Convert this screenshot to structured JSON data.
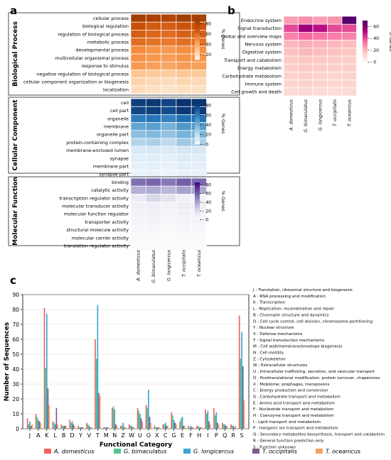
{
  "panel_labels": {
    "a": "a",
    "b": "b",
    "c": "c"
  },
  "species": [
    "A. domesticus",
    "G. bimaculatus",
    "G. longicercus",
    "T. occipitalis",
    "T. oceanicus"
  ],
  "chart_data": [
    {
      "type": "heatmap",
      "panel": "a",
      "group_label": "Biological Process",
      "colorbar_label": "% Genes",
      "colorbar_ticks": [
        20,
        40,
        60,
        80
      ],
      "range": [
        10,
        90
      ],
      "colormap": [
        "#fef3e6",
        "#fcc693",
        "#f58b3d",
        "#c94f06",
        "#963a05"
      ],
      "rows": [
        "cellular process",
        "biological regulation",
        "regulation of biological process",
        "metabolic process",
        "developmental process",
        "multicellular organismal process",
        "response to stimulus",
        "negative regulation of biological process",
        "cellular component organization or biogenesis",
        "localization"
      ],
      "columns": [
        "A. domesticus",
        "G. bimaculatus",
        "G. longicercus",
        "T. occipitalis",
        "T. oceanicus"
      ],
      "values": [
        [
          85,
          82,
          80,
          85,
          83
        ],
        [
          70,
          66,
          65,
          69,
          68
        ],
        [
          65,
          62,
          60,
          64,
          63
        ],
        [
          60,
          58,
          56,
          59,
          58
        ],
        [
          50,
          47,
          45,
          49,
          48
        ],
        [
          48,
          46,
          44,
          47,
          46
        ],
        [
          45,
          43,
          41,
          44,
          43
        ],
        [
          30,
          28,
          27,
          29,
          28
        ],
        [
          24,
          22,
          21,
          23,
          22
        ],
        [
          20,
          18,
          17,
          19,
          18
        ]
      ]
    },
    {
      "type": "heatmap",
      "panel": "a",
      "group_label": "Cellular Component",
      "colorbar_label": "% Genes",
      "colorbar_ticks": [
        0,
        20,
        40,
        60,
        80
      ],
      "range": [
        0,
        85
      ],
      "colormap": [
        "#f4f9fe",
        "#c5dcef",
        "#6baed6",
        "#2171b5",
        "#08306b"
      ],
      "rows": [
        "cell",
        "cell part",
        "organelle",
        "membrane",
        "organelle part",
        "protein-containing complex",
        "membrane-enclosed lumen",
        "synapse",
        "membrane part",
        "synapse part"
      ],
      "columns": [
        "A. domesticus",
        "G. bimaculatus",
        "G. longicercus",
        "T. occipitalis",
        "T. oceanicus"
      ],
      "values": [
        [
          80,
          82,
          78,
          84,
          83
        ],
        [
          78,
          80,
          76,
          82,
          81
        ],
        [
          60,
          62,
          58,
          64,
          63
        ],
        [
          45,
          47,
          40,
          50,
          48
        ],
        [
          35,
          37,
          33,
          40,
          38
        ],
        [
          25,
          27,
          22,
          30,
          28
        ],
        [
          12,
          13,
          11,
          14,
          13
        ],
        [
          8,
          9,
          7,
          10,
          9
        ],
        [
          6,
          7,
          5,
          8,
          7
        ],
        [
          4,
          5,
          3,
          6,
          5
        ]
      ]
    },
    {
      "type": "heatmap",
      "panel": "a",
      "group_label": "Molecular Function",
      "colorbar_label": "% Genes",
      "colorbar_ticks": [
        0,
        20,
        40,
        60,
        80
      ],
      "range": [
        0,
        85
      ],
      "colormap": [
        "#fcfbfd",
        "#dadaeb",
        "#9e9ac8",
        "#6a51a3",
        "#3f007d"
      ],
      "rows": [
        "binding",
        "catalytic activity",
        "transcription regulator activity",
        "molecular transducer activity",
        "molecular function regulator",
        "transporter activity",
        "structural molecule activity",
        "molecular carrier activity",
        "translation regulator activity"
      ],
      "columns": [
        "A. domesticus",
        "G. bimaculatus",
        "G. longicercus",
        "T. occipitalis",
        "T. oceanicus"
      ],
      "values": [
        [
          55,
          58,
          52,
          60,
          57
        ],
        [
          35,
          37,
          33,
          40,
          38
        ],
        [
          10,
          22,
          15,
          8,
          6
        ],
        [
          7,
          8,
          6,
          9,
          8
        ],
        [
          6,
          7,
          5,
          7,
          6
        ],
        [
          5,
          6,
          4,
          6,
          5
        ],
        [
          3,
          4,
          2,
          4,
          3
        ],
        [
          1,
          1,
          1,
          1,
          1
        ],
        [
          1,
          1,
          1,
          1,
          1
        ]
      ]
    },
    {
      "type": "heatmap",
      "panel": "b",
      "colorbar_label": "% Genes",
      "colorbar_ticks": [
        0,
        20,
        40,
        60
      ],
      "range": [
        0,
        70
      ],
      "colormap": [
        "#fff7f3",
        "#fcc5c0",
        "#f768a1",
        "#ae017e",
        "#49006a"
      ],
      "rows": [
        "Endocrine system",
        "Signal transduction",
        "Global and overview maps",
        "Nervous system",
        "Digestive system",
        "Transport and catabolism",
        "Energy metabolism",
        "Carbohydrate metabolism",
        "Immune system",
        "Cell growth and death"
      ],
      "columns": [
        "A. domesticus",
        "G. bimaculatus",
        "G. longicercus",
        "T. occipitalis",
        "T. oceanicus"
      ],
      "values": [
        [
          25,
          28,
          25,
          27,
          68
        ],
        [
          40,
          55,
          50,
          40,
          40
        ],
        [
          30,
          35,
          33,
          31,
          30
        ],
        [
          20,
          22,
          21,
          20,
          19
        ],
        [
          18,
          20,
          19,
          18,
          17
        ],
        [
          15,
          17,
          16,
          15,
          14
        ],
        [
          14,
          16,
          15,
          14,
          14
        ],
        [
          13,
          14,
          13,
          12,
          13
        ],
        [
          12,
          13,
          12,
          11,
          12
        ],
        [
          10,
          11,
          10,
          9,
          10
        ]
      ]
    },
    {
      "type": "bar",
      "panel": "c",
      "xlabel": "Functional Category",
      "ylabel": "Number of Sequences",
      "ylim": [
        0,
        90
      ],
      "yticks": [
        0,
        10,
        20,
        30,
        40,
        50,
        60,
        70,
        80,
        90
      ],
      "categories": [
        "J",
        "A",
        "K",
        "L",
        "B",
        "D",
        "Y",
        "V",
        "T",
        "M",
        "N",
        "Z",
        "W",
        "U",
        "O",
        "X",
        "C",
        "G",
        "E",
        "F",
        "H",
        "I",
        "P",
        "Q",
        "R",
        "S"
      ],
      "series": [
        {
          "name": "A. domesticus",
          "color": "#e8665f",
          "values": [
            7,
            10,
            81,
            5,
            3,
            6,
            2,
            4,
            60,
            1,
            14,
            2,
            3,
            14,
            16,
            2,
            3,
            11,
            5,
            2,
            2,
            13,
            14,
            4,
            3,
            76
          ]
        },
        {
          "name": "G. bimaculatus",
          "color": "#4fc98f",
          "values": [
            3,
            8,
            41,
            4,
            2,
            4,
            1,
            3,
            47,
            1,
            15,
            2,
            2,
            12,
            14,
            1,
            3,
            9,
            7,
            1,
            2,
            10,
            9,
            3,
            2,
            47
          ]
        },
        {
          "name": "G. longicercus",
          "color": "#3ba3d4",
          "values": [
            5,
            6,
            77,
            3,
            2,
            5,
            1,
            2,
            83,
            1,
            13,
            4,
            2,
            10,
            26,
            1,
            4,
            6,
            8,
            2,
            1,
            12,
            11,
            3,
            2,
            65
          ]
        },
        {
          "name": "T. occipitalis",
          "color": "#7b5a8c",
          "values": [
            2,
            5,
            27,
            14,
            2,
            3,
            1,
            1,
            24,
            1,
            3,
            1,
            1,
            7,
            8,
            1,
            2,
            4,
            2,
            1,
            1,
            5,
            4,
            2,
            1,
            42
          ]
        },
        {
          "name": "T. oceanicus",
          "color": "#f4a261",
          "values": [
            3,
            4,
            16,
            3,
            2,
            2,
            1,
            1,
            22,
            1,
            2,
            1,
            1,
            5,
            4,
            1,
            2,
            3,
            2,
            1,
            1,
            3,
            3,
            2,
            2,
            19
          ]
        }
      ],
      "category_descriptions": [
        "J : Translation, ribosomal structure and biogenesis",
        "A : RNA processing and modification",
        "K : Transcription",
        "L : Replication, recombination and repair",
        "B : Chromatin structure and dynamics",
        "D : Cell cycle control, cell division, chromosome partitioning",
        "Y : Nuclear structure",
        "V : Defense mechanisms",
        "T : Signal transduction mechanisms",
        "M : Cell wall/membrane/envelope biogenesis",
        "N : Cell motility",
        "Z : Cytoskeleton",
        "W : Extracellular structures",
        "U : Intracellular trafficking, secretion, and vesicular transport",
        "O : Posttranslational modification, protein turnover, chaperones",
        "X : Mobilome: prophages, transposons",
        "C : Energy production and conversion",
        "G : Carbohydrate transport and metabolism",
        "E : Amino acid transport and metabolism",
        "F : Nucleotide transport and metabolism",
        "H : Coenzyme transport and metabolism",
        "I : Lipid transport and metabolism",
        "P : Inorganic ion transport and metabolism",
        "Q : Secondary metabolites biosynthesis, transport and catabolism",
        "R : General function prediction only",
        "S : Function unknown"
      ]
    }
  ]
}
